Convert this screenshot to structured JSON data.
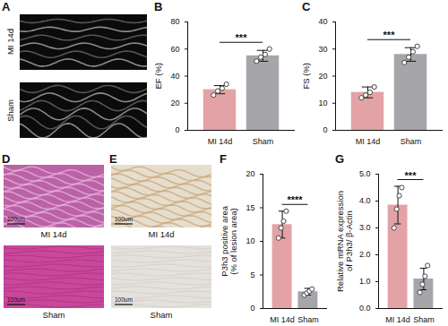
{
  "image_panels": [
    {
      "panel": "A",
      "labels": [
        "MI 14d",
        "Sham"
      ]
    },
    {
      "panel": "D",
      "labels": [
        "MI 14d",
        "Sham"
      ],
      "scale_bar": "100um"
    },
    {
      "panel": "E",
      "labels": [
        "MI 14d",
        "Sham"
      ],
      "scale_bar": "100um"
    }
  ],
  "chart_data": [
    {
      "panel": "B",
      "type": "bar",
      "ylabel": "EF (%)",
      "categories": [
        "MI 14d",
        "Sham"
      ],
      "values": [
        30,
        55
      ],
      "error": [
        3,
        4
      ],
      "points": [
        [
          26,
          29,
          31,
          34
        ],
        [
          51,
          54,
          56,
          60
        ]
      ],
      "colors": [
        "#e3a3a6",
        "#a5a5aa"
      ],
      "ylim": [
        0,
        80
      ],
      "yticks": [
        0,
        20,
        40,
        60,
        80
      ],
      "annotation": "***"
    },
    {
      "panel": "C",
      "type": "bar",
      "ylabel": "FS (%)",
      "categories": [
        "MI 14d",
        "Sham"
      ],
      "values": [
        14,
        28
      ],
      "error": [
        2,
        2.5
      ],
      "points": [
        [
          12,
          13,
          14,
          16
        ],
        [
          25,
          27,
          29,
          31
        ]
      ],
      "colors": [
        "#e3a3a6",
        "#a5a5aa"
      ],
      "ylim": [
        0,
        40
      ],
      "yticks": [
        0,
        10,
        20,
        30,
        40
      ],
      "annotation": "***"
    },
    {
      "panel": "F",
      "type": "bar",
      "ylabel": "P3h3 positive area\n(% of lesion area)",
      "categories": [
        "MI 14d",
        "Sham"
      ],
      "values": [
        12.5,
        2.5
      ],
      "error": [
        2,
        0.5
      ],
      "points": [
        [
          10.5,
          12,
          13,
          14.5
        ],
        [
          2,
          2.3,
          2.6,
          2.9
        ]
      ],
      "colors": [
        "#e3a3a6",
        "#a5a5aa"
      ],
      "ylim": [
        0,
        20
      ],
      "yticks": [
        0,
        5,
        10,
        15,
        20
      ],
      "annotation": "****"
    },
    {
      "panel": "G",
      "type": "bar",
      "ylabel": "Relative mRNA expression\nof P3h3/ β-Actin",
      "categories": [
        "MI 14d",
        "Sham"
      ],
      "values": [
        3.85,
        1.1
      ],
      "error": [
        0.7,
        0.4
      ],
      "points": [
        [
          3,
          3.7,
          4.2,
          4.5
        ],
        [
          0.6,
          0.9,
          1.2,
          1.6
        ]
      ],
      "colors": [
        "#e3a3a6",
        "#a5a5aa"
      ],
      "ylim": [
        0,
        5
      ],
      "yticks": [
        0,
        1,
        2,
        3,
        4,
        5
      ],
      "annotation": "***"
    }
  ]
}
